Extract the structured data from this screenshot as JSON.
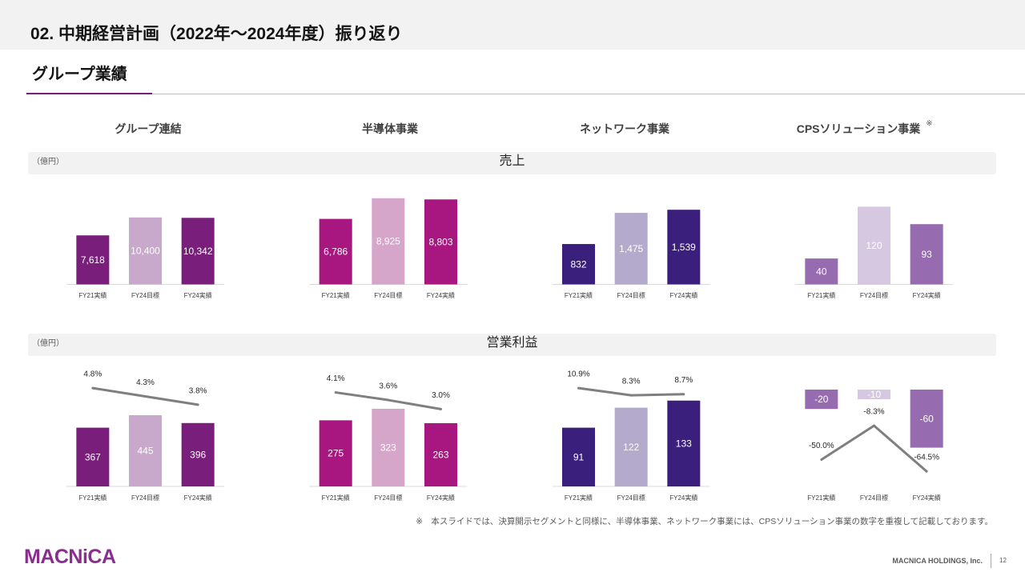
{
  "header": {
    "title": "02. 中期経営計画（2022年～2024年度）振り返り"
  },
  "section": {
    "title": "グループ業績"
  },
  "columns": [
    {
      "label": "グループ連結"
    },
    {
      "label": "半導体事業"
    },
    {
      "label": "ネットワーク事業"
    },
    {
      "label": "CPSソリューション事業",
      "note_mark": "※"
    }
  ],
  "rows": [
    {
      "label": "売上",
      "unit": "（億円）"
    },
    {
      "label": "営業利益",
      "unit": "（億円）"
    }
  ],
  "theme": {
    "accent": "#7A1E7B",
    "band": "#F2F2F2",
    "logo": "#8A2D8E"
  },
  "chart_data": [
    {
      "type": "bar",
      "categories": [
        "FY21実績",
        "FY24目標",
        "FY24実績"
      ],
      "ylim": [
        0,
        15600
      ],
      "axis_line": true,
      "series": [
        {
          "type": "bar",
          "values": [
            7618,
            10400,
            10342
          ],
          "value_labels": [
            "7,618",
            "10,400",
            "10,342"
          ],
          "colors": [
            "#7A1E7B",
            "#C8A8CB",
            "#7A1E7B"
          ]
        }
      ]
    },
    {
      "type": "bar",
      "categories": [
        "FY21実績",
        "FY24目標",
        "FY24実績"
      ],
      "ylim": [
        0,
        10400
      ],
      "axis_line": true,
      "series": [
        {
          "type": "bar",
          "values": [
            6786,
            8925,
            8803
          ],
          "value_labels": [
            "6,786",
            "8,925",
            "8,803"
          ],
          "colors": [
            "#A7177F",
            "#D5A6CA",
            "#A7177F"
          ]
        }
      ]
    },
    {
      "type": "bar",
      "categories": [
        "FY21実績",
        "FY24目標",
        "FY24実績"
      ],
      "ylim": [
        0,
        2070
      ],
      "axis_line": true,
      "series": [
        {
          "type": "bar",
          "values": [
            832,
            1475,
            1539
          ],
          "value_labels": [
            "832",
            "1,475",
            "1,539"
          ],
          "colors": [
            "#3A1F7D",
            "#B4AACB",
            "#3A1F7D"
          ]
        }
      ]
    },
    {
      "type": "bar",
      "categories": [
        "FY21実績",
        "FY24目標",
        "FY24実績"
      ],
      "ylim": [
        0,
        155
      ],
      "axis_line": true,
      "series": [
        {
          "type": "bar",
          "values": [
            40,
            120,
            93
          ],
          "value_labels": [
            "40",
            "120",
            "93"
          ],
          "colors": [
            "#966BB0",
            "#D5C8E0",
            "#966BB0"
          ]
        }
      ]
    },
    {
      "type": "bar",
      "categories": [
        "FY21実績",
        "FY24目標",
        "FY24実績"
      ],
      "ylim": [
        0,
        625
      ],
      "y2lim": [
        -1.1,
        4.9
      ],
      "axis_line": true,
      "series": [
        {
          "type": "bar",
          "values": [
            367,
            445,
            396
          ],
          "value_labels": [
            "367",
            "445",
            "396"
          ],
          "colors": [
            "#7A1E7B",
            "#C8A8CB",
            "#7A1E7B"
          ]
        },
        {
          "type": "line",
          "values": [
            4.8,
            4.3,
            3.8
          ],
          "value_labels": [
            "4.8%",
            "4.3%",
            "3.8%"
          ],
          "color": "#7F7F7F"
        }
      ]
    },
    {
      "type": "bar",
      "categories": [
        "FY21実績",
        "FY24目標",
        "FY24実績"
      ],
      "ylim": [
        0,
        416
      ],
      "y2lim": [
        -2.1,
        4.5
      ],
      "axis_line": true,
      "series": [
        {
          "type": "bar",
          "values": [
            275,
            323,
            263
          ],
          "value_labels": [
            "275",
            "323",
            "263"
          ],
          "colors": [
            "#A7177F",
            "#D5A6CA",
            "#A7177F"
          ]
        },
        {
          "type": "line",
          "values": [
            4.1,
            3.6,
            3.0
          ],
          "value_labels": [
            "4.1%",
            "3.6%",
            "3.0%"
          ],
          "color": "#7F7F7F"
        }
      ]
    },
    {
      "type": "bar",
      "categories": [
        "FY21実績",
        "FY24目標",
        "FY24実績"
      ],
      "ylim": [
        0,
        155
      ],
      "y2lim": [
        -24.6,
        11.5
      ],
      "axis_line": true,
      "series": [
        {
          "type": "bar",
          "values": [
            91,
            122,
            133
          ],
          "value_labels": [
            "91",
            "122",
            "133"
          ],
          "colors": [
            "#3A1F7D",
            "#B4AACB",
            "#3A1F7D"
          ]
        },
        {
          "type": "line",
          "values": [
            10.9,
            8.3,
            8.7
          ],
          "value_labels": [
            "10.9%",
            "8.3%",
            "8.7%"
          ],
          "color": "#7F7F7F"
        }
      ]
    },
    {
      "type": "bar",
      "categories": [
        "FY21実績",
        "FY24目標",
        "FY24実績"
      ],
      "ylim": [
        -100,
        3.3
      ],
      "y2lim": [
        -83,
        40
      ],
      "axis_line": false,
      "series": [
        {
          "type": "bar",
          "values": [
            -20,
            -10,
            -60
          ],
          "value_labels": [
            "-20",
            "-10",
            "-60"
          ],
          "colors": [
            "#966BB0",
            "#D5C8E0",
            "#966BB0"
          ]
        },
        {
          "type": "line",
          "values": [
            -50.0,
            -8.3,
            -64.5
          ],
          "value_labels": [
            "-50.0%",
            "-8.3%",
            "-64.5%"
          ],
          "color": "#7F7F7F"
        }
      ]
    }
  ],
  "footnote": "※　本スライドでは、決算開示セグメントと同様に、半導体事業、ネットワーク事業には、CPSソリューション事業の数字を重複して記載しております。",
  "footer": {
    "logo_text": "MACNiCA",
    "company": "MACNICA HOLDINGS, Inc.",
    "page_number": "12"
  }
}
